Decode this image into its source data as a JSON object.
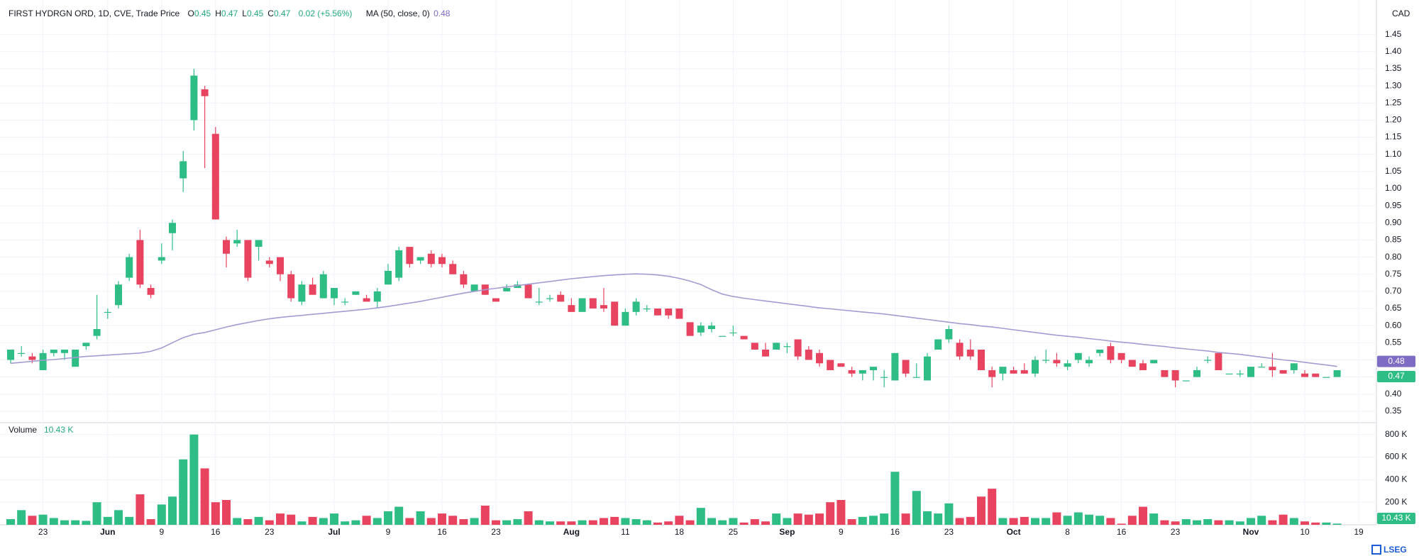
{
  "chart_data": {
    "type": "candlestick",
    "title": "FIRST HYDRGN ORD, 1D, CVE, Trade Price",
    "ohlc_legend": [
      {
        "label": "O",
        "value": "0.45"
      },
      {
        "label": "H",
        "value": "0.47"
      },
      {
        "label": "L",
        "value": "0.45"
      },
      {
        "label": "C",
        "value": "0.47"
      }
    ],
    "change": "0.02 (+5.56%)",
    "currency": "CAD",
    "last_close_label": "0.47",
    "logo": "LSEG",
    "up_color": "#2ebd85",
    "down_color": "#e8435f",
    "grid": true,
    "categories": [
      null,
      null,
      null,
      "23",
      null,
      null,
      null,
      null,
      null,
      "Jun",
      null,
      null,
      null,
      null,
      "9",
      null,
      null,
      null,
      null,
      "16",
      null,
      null,
      null,
      null,
      "23",
      null,
      null,
      null,
      null,
      null,
      "Jul",
      null,
      null,
      null,
      null,
      "9",
      null,
      null,
      null,
      null,
      "16",
      null,
      null,
      null,
      null,
      "23",
      null,
      null,
      null,
      null,
      null,
      null,
      "Aug",
      null,
      null,
      null,
      null,
      "11",
      null,
      null,
      null,
      null,
      "18",
      null,
      null,
      null,
      null,
      "25",
      null,
      null,
      null,
      null,
      "Sep",
      null,
      null,
      null,
      null,
      "9",
      null,
      null,
      null,
      null,
      "16",
      null,
      null,
      null,
      null,
      "23",
      null,
      null,
      null,
      null,
      null,
      "Oct",
      null,
      null,
      null,
      null,
      "8",
      null,
      null,
      null,
      null,
      "16",
      null,
      null,
      null,
      null,
      "23",
      null,
      null,
      null,
      null,
      null,
      null,
      "Nov",
      null,
      null,
      null,
      null,
      "10",
      null,
      null,
      null,
      null,
      "19"
    ],
    "open": [
      0.5,
      0.52,
      0.51,
      0.47,
      0.52,
      0.52,
      0.48,
      0.54,
      0.57,
      0.64,
      0.66,
      0.74,
      0.85,
      0.71,
      0.79,
      0.87,
      1.03,
      1.2,
      1.29,
      1.16,
      0.85,
      0.84,
      0.85,
      0.83,
      0.79,
      0.8,
      0.75,
      0.67,
      0.72,
      0.68,
      0.68,
      0.67,
      0.69,
      0.68,
      0.67,
      0.72,
      0.74,
      0.83,
      0.79,
      0.81,
      0.8,
      0.78,
      0.75,
      0.7,
      0.72,
      0.68,
      0.7,
      0.71,
      0.72,
      0.67,
      0.68,
      0.69,
      0.66,
      0.64,
      0.68,
      0.66,
      0.67,
      0.6,
      0.64,
      0.65,
      0.65,
      0.65,
      0.65,
      0.61,
      0.58,
      0.59,
      0.57,
      0.58,
      0.57,
      0.55,
      0.53,
      0.53,
      0.54,
      0.56,
      0.53,
      0.52,
      0.5,
      0.49,
      0.47,
      0.46,
      0.47,
      0.45,
      0.44,
      0.5,
      0.45,
      0.44,
      0.53,
      0.56,
      0.55,
      0.53,
      0.53,
      0.47,
      0.46,
      0.47,
      0.47,
      0.46,
      0.5,
      0.5,
      0.48,
      0.5,
      0.49,
      0.52,
      0.54,
      0.52,
      0.5,
      0.49,
      0.49,
      0.47,
      0.47,
      0.44,
      0.45,
      0.5,
      0.52,
      0.46,
      0.46,
      0.45,
      0.48,
      0.48,
      0.47,
      0.47,
      0.46,
      0.46,
      0.45,
      0.45,
      null,
      null
    ],
    "high": [
      0.53,
      0.54,
      0.52,
      0.53,
      0.53,
      0.53,
      0.53,
      0.55,
      0.69,
      0.65,
      0.73,
      0.81,
      0.88,
      0.72,
      0.84,
      0.91,
      1.11,
      1.35,
      1.3,
      1.18,
      0.86,
      0.88,
      0.85,
      0.85,
      0.8,
      0.8,
      0.76,
      0.73,
      0.74,
      0.76,
      0.71,
      0.68,
      0.7,
      0.69,
      0.71,
      0.78,
      0.83,
      0.83,
      0.8,
      0.82,
      0.81,
      0.79,
      0.76,
      0.72,
      0.72,
      0.68,
      0.72,
      0.73,
      0.72,
      0.71,
      0.69,
      0.7,
      0.68,
      0.68,
      0.68,
      0.71,
      0.67,
      0.65,
      0.68,
      0.66,
      0.65,
      0.65,
      0.65,
      0.61,
      0.61,
      0.61,
      0.57,
      0.6,
      0.57,
      0.55,
      0.55,
      0.55,
      0.55,
      0.56,
      0.54,
      0.53,
      0.5,
      0.49,
      0.48,
      0.47,
      0.48,
      0.47,
      0.52,
      0.5,
      0.49,
      0.52,
      0.56,
      0.6,
      0.56,
      0.56,
      0.53,
      0.48,
      0.48,
      0.48,
      0.49,
      0.51,
      0.53,
      0.52,
      0.5,
      0.52,
      0.51,
      0.53,
      0.55,
      0.52,
      0.5,
      0.5,
      0.5,
      0.47,
      0.47,
      0.44,
      0.48,
      0.51,
      0.52,
      0.46,
      0.47,
      0.48,
      0.49,
      0.52,
      0.47,
      0.49,
      0.47,
      0.46,
      0.45,
      0.47,
      null,
      null
    ],
    "low": [
      0.49,
      0.51,
      0.49,
      0.47,
      0.51,
      0.5,
      0.48,
      0.53,
      0.56,
      0.62,
      0.65,
      0.73,
      0.71,
      0.68,
      0.78,
      0.82,
      0.99,
      1.17,
      1.06,
      0.91,
      0.77,
      0.83,
      0.73,
      0.79,
      0.77,
      0.73,
      0.67,
      0.66,
      0.69,
      0.68,
      0.66,
      0.66,
      0.69,
      0.67,
      0.65,
      0.72,
      0.73,
      0.77,
      0.78,
      0.77,
      0.77,
      0.75,
      0.71,
      0.7,
      0.69,
      0.67,
      0.7,
      0.71,
      0.68,
      0.66,
      0.67,
      0.67,
      0.64,
      0.64,
      0.65,
      0.64,
      0.6,
      0.6,
      0.63,
      0.64,
      0.63,
      0.62,
      0.62,
      0.57,
      0.57,
      0.58,
      0.57,
      0.57,
      0.56,
      0.53,
      0.51,
      0.53,
      0.52,
      0.5,
      0.5,
      0.48,
      0.47,
      0.48,
      0.45,
      0.44,
      0.44,
      0.42,
      0.44,
      0.45,
      0.45,
      0.44,
      0.53,
      0.55,
      0.5,
      0.5,
      0.47,
      0.42,
      0.44,
      0.46,
      0.46,
      0.45,
      0.49,
      0.48,
      0.47,
      0.49,
      0.48,
      0.51,
      0.49,
      0.49,
      0.48,
      0.47,
      0.49,
      0.45,
      0.42,
      0.44,
      0.45,
      0.49,
      0.47,
      0.46,
      0.45,
      0.45,
      0.48,
      0.45,
      0.46,
      0.46,
      0.45,
      0.45,
      0.45,
      0.45,
      null,
      null
    ],
    "close": [
      0.53,
      0.52,
      0.5,
      0.52,
      0.53,
      0.53,
      0.53,
      0.55,
      0.59,
      0.64,
      0.72,
      0.8,
      0.72,
      0.69,
      0.8,
      0.9,
      1.08,
      1.33,
      1.27,
      0.91,
      0.81,
      0.85,
      0.74,
      0.85,
      0.78,
      0.75,
      0.68,
      0.72,
      0.69,
      0.75,
      0.71,
      0.67,
      0.7,
      0.67,
      0.7,
      0.76,
      0.82,
      0.78,
      0.8,
      0.78,
      0.78,
      0.75,
      0.72,
      0.72,
      0.69,
      0.67,
      0.71,
      0.72,
      0.68,
      0.67,
      0.68,
      0.67,
      0.64,
      0.68,
      0.65,
      0.65,
      0.6,
      0.64,
      0.67,
      0.65,
      0.63,
      0.63,
      0.62,
      0.57,
      0.6,
      0.6,
      0.57,
      0.58,
      0.56,
      0.53,
      0.51,
      0.55,
      0.54,
      0.51,
      0.5,
      0.49,
      0.47,
      0.48,
      0.46,
      0.47,
      0.48,
      0.45,
      0.52,
      0.46,
      0.45,
      0.51,
      0.56,
      0.59,
      0.51,
      0.51,
      0.47,
      0.45,
      0.48,
      0.46,
      0.46,
      0.5,
      0.5,
      0.49,
      0.49,
      0.52,
      0.5,
      0.53,
      0.5,
      0.5,
      0.48,
      0.47,
      0.5,
      0.45,
      0.44,
      0.44,
      0.47,
      0.5,
      0.47,
      0.46,
      0.46,
      0.48,
      0.48,
      0.47,
      0.46,
      0.49,
      0.45,
      0.45,
      0.45,
      0.47,
      null,
      null
    ],
    "ylim": [
      0.325,
      1.53
    ],
    "yticks": [
      0.35,
      {
        "value": 0.4,
        "label": "0.40"
      },
      0.45,
      {
        "value": 0.5,
        "label": "0.50"
      },
      0.55,
      {
        "value": 0.6,
        "label": "0.60"
      },
      0.65,
      {
        "value": 0.7,
        "label": "0.70"
      },
      0.75,
      {
        "value": 0.8,
        "label": "0.80"
      },
      0.85,
      {
        "value": 0.9,
        "label": "0.90"
      },
      0.95,
      {
        "value": 1,
        "label": "1.00"
      },
      1.05,
      {
        "value": 1.1,
        "label": "1.10"
      },
      1.15,
      {
        "value": 1.2,
        "label": "1.20"
      },
      1.25,
      {
        "value": 1.3,
        "label": "1.30"
      },
      1.35,
      {
        "value": 1.4,
        "label": "1.40"
      },
      1.45
    ],
    "series": [
      {
        "name": "MA (50, close, 0)",
        "color": "#a79ad3",
        "last_label": "0.48",
        "values": [
          0.49,
          0.493,
          0.496,
          0.499,
          0.501,
          0.504,
          0.507,
          0.51,
          0.512,
          0.514,
          0.516,
          0.518,
          0.52,
          0.525,
          0.535,
          0.55,
          0.565,
          0.575,
          0.58,
          0.588,
          0.596,
          0.603,
          0.609,
          0.615,
          0.62,
          0.624,
          0.627,
          0.63,
          0.633,
          0.636,
          0.639,
          0.642,
          0.645,
          0.648,
          0.652,
          0.656,
          0.661,
          0.666,
          0.671,
          0.677,
          0.683,
          0.689,
          0.695,
          0.7,
          0.705,
          0.709,
          0.713,
          0.717,
          0.721,
          0.725,
          0.729,
          0.733,
          0.737,
          0.74,
          0.743,
          0.746,
          0.748,
          0.75,
          0.751,
          0.75,
          0.748,
          0.744,
          0.738,
          0.73,
          0.72,
          0.705,
          0.692,
          0.685,
          0.68,
          0.676,
          0.672,
          0.668,
          0.664,
          0.66,
          0.656,
          0.652,
          0.649,
          0.646,
          0.643,
          0.64,
          0.637,
          0.634,
          0.63,
          0.626,
          0.622,
          0.618,
          0.614,
          0.61,
          0.606,
          0.603,
          0.599,
          0.596,
          0.592,
          0.588,
          0.584,
          0.58,
          0.576,
          0.572,
          0.569,
          0.566,
          0.562,
          0.559,
          0.555,
          0.552,
          0.549,
          0.545,
          0.542,
          0.539,
          0.535,
          0.532,
          0.529,
          0.526,
          0.522,
          0.519,
          0.516,
          0.512,
          0.508,
          0.504,
          0.5,
          0.497,
          0.493,
          0.489,
          0.485,
          0.481,
          null,
          null
        ]
      }
    ],
    "volume": {
      "name": "Volume",
      "last_label": "10.43 K",
      "values": [
        50,
        130,
        80,
        90,
        60,
        40,
        40,
        35,
        200,
        70,
        130,
        70,
        270,
        50,
        180,
        250,
        580,
        800,
        500,
        200,
        220,
        60,
        50,
        70,
        40,
        100,
        90,
        30,
        70,
        60,
        100,
        30,
        40,
        80,
        60,
        120,
        160,
        60,
        120,
        60,
        100,
        80,
        50,
        60,
        170,
        40,
        40,
        50,
        120,
        40,
        30,
        30,
        30,
        40,
        40,
        60,
        70,
        60,
        50,
        40,
        20,
        30,
        80,
        40,
        150,
        60,
        40,
        60,
        20,
        50,
        30,
        100,
        60,
        100,
        90,
        100,
        200,
        220,
        50,
        70,
        80,
        100,
        470,
        100,
        300,
        120,
        100,
        190,
        60,
        70,
        250,
        320,
        60,
        60,
        70,
        60,
        60,
        110,
        80,
        110,
        90,
        80,
        60,
        10,
        80,
        160,
        100,
        40,
        30,
        50,
        40,
        50,
        40,
        40,
        30,
        60,
        80,
        40,
        90,
        60,
        30,
        20,
        20,
        10.43,
        null,
        null
      ],
      "ylim": [
        0,
        880
      ],
      "yticks": [
        {
          "value": 200,
          "label": "200 K"
        },
        {
          "value": 400,
          "label": "400 K"
        },
        {
          "value": 600,
          "label": "600 K"
        },
        {
          "value": 800,
          "label": "800 K"
        }
      ]
    }
  }
}
